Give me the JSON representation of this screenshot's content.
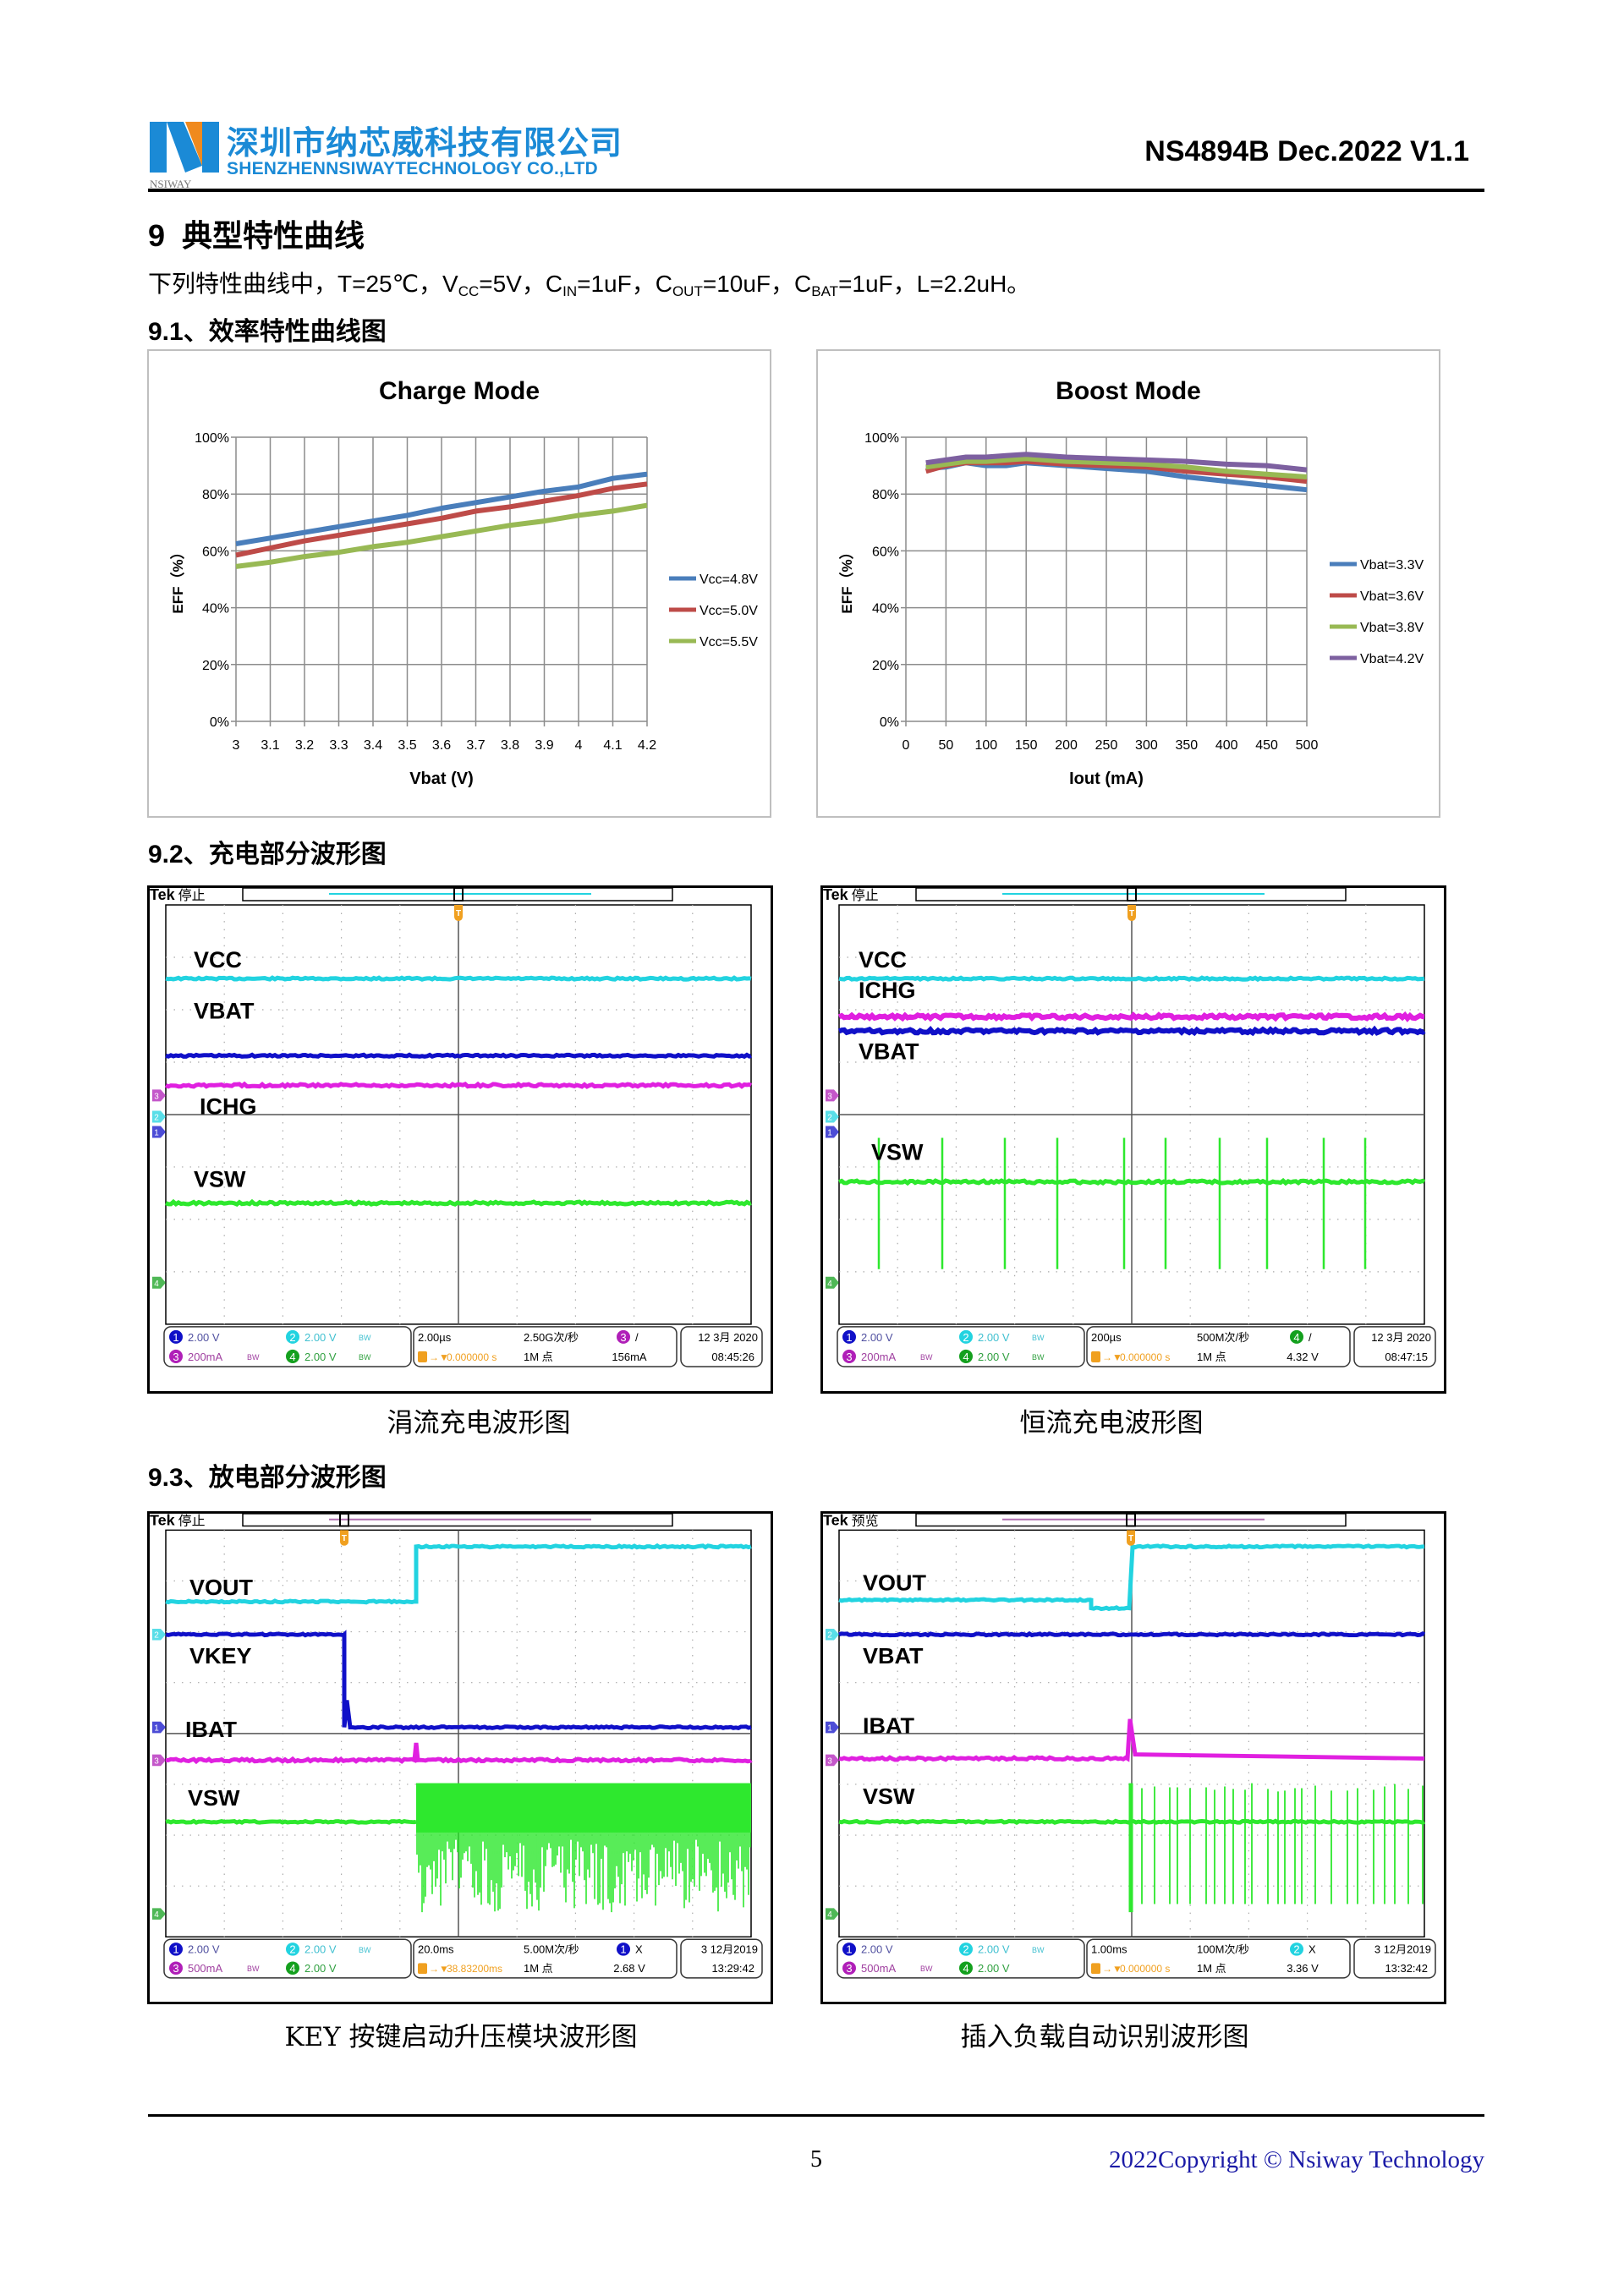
{
  "header": {
    "logo_text": "NSIWAY",
    "company_cn": "深圳市纳芯威科技有限公司",
    "company_en": "SHENZHENNSIWAYTECHNOLOGY CO.,LTD",
    "doc_id": "NS4894B Dec.2022 V1.1"
  },
  "section": {
    "title": "9  典型特性曲线",
    "conditions": [
      {
        "t": "下列特性曲线中，T=25℃，V"
      },
      {
        "t": "CC",
        "sub": true
      },
      {
        "t": "=5V，C"
      },
      {
        "t": "IN",
        "sub": true
      },
      {
        "t": "=1uF，C"
      },
      {
        "t": "OUT",
        "sub": true
      },
      {
        "t": "=10uF，C"
      },
      {
        "t": "BAT",
        "sub": true
      },
      {
        "t": "=1uF，L=2.2uH。"
      }
    ],
    "sub1": "9.1、效率特性曲线图",
    "sub2": "9.2、充电部分波形图",
    "sub3": "9.3、放电部分波形图"
  },
  "chart_data": [
    {
      "type": "line",
      "title": "Charge Mode",
      "xlabel": "Vbat (V)",
      "ylabel": "EFF（%）",
      "x": [
        3,
        3.1,
        3.2,
        3.3,
        3.4,
        3.5,
        3.6,
        3.7,
        3.8,
        3.9,
        4,
        4.1,
        4.2
      ],
      "x_tick_labels": [
        "3",
        "3.1",
        "3.2",
        "3.3",
        "3.4",
        "3.5",
        "3.6",
        "3.7",
        "3.8",
        "3.9",
        "4",
        "4.1",
        "4.2"
      ],
      "xlim": [
        3,
        4.2
      ],
      "ylim": [
        0,
        100
      ],
      "y_tick_labels": [
        "0%",
        "20%",
        "40%",
        "60%",
        "80%",
        "100%"
      ],
      "grid": true,
      "legend": "right",
      "series": [
        {
          "name": "Vcc=4.8V",
          "color": "#4a7ebb",
          "values": [
            62.5,
            64.5,
            66.5,
            68.5,
            70.5,
            72.5,
            75,
            77,
            79,
            81,
            82.5,
            85.5,
            87
          ]
        },
        {
          "name": "Vcc=5.0V",
          "color": "#be4b48",
          "values": [
            58.5,
            61,
            63.5,
            65.5,
            67.5,
            69.5,
            71.5,
            74,
            75.5,
            77.5,
            79.5,
            82,
            83.5
          ]
        },
        {
          "name": "Vcc=5.5V",
          "color": "#98b954",
          "values": [
            54.5,
            56,
            58,
            59.5,
            61.5,
            63,
            65,
            67,
            69,
            70.5,
            72.5,
            74,
            76
          ]
        }
      ]
    },
    {
      "type": "line",
      "title": "Boost Mode",
      "xlabel": "Iout (mA)",
      "ylabel": "EFF（%）",
      "x": [
        25,
        50,
        75,
        100,
        125,
        150,
        200,
        250,
        300,
        350,
        400,
        450,
        500
      ],
      "x_tick_labels": [
        "0",
        "50",
        "100",
        "150",
        "200",
        "250",
        "300",
        "350",
        "400",
        "450",
        "500"
      ],
      "xlim": [
        0,
        500
      ],
      "ylim": [
        0,
        100
      ],
      "y_tick_labels": [
        "0%",
        "20%",
        "40%",
        "60%",
        "80%",
        "100%"
      ],
      "grid": true,
      "legend": "right",
      "series": [
        {
          "name": "Vbat=3.3V",
          "color": "#4a7ebb",
          "values": [
            89,
            89.5,
            91,
            90,
            90,
            91,
            90,
            89,
            88,
            86,
            84.5,
            83,
            81.5
          ]
        },
        {
          "name": "Vbat=3.6V",
          "color": "#be4b48",
          "values": [
            88,
            90,
            91,
            91,
            91,
            91.5,
            90.5,
            90,
            89.5,
            88,
            87,
            86,
            84.5
          ]
        },
        {
          "name": "Vbat=3.8V",
          "color": "#98b954",
          "values": [
            89.5,
            90.5,
            91.5,
            91.5,
            92,
            92.5,
            91.5,
            91,
            90.5,
            89.5,
            88,
            87,
            86
          ]
        },
        {
          "name": "Vbat=4.2V",
          "color": "#7d60a0",
          "values": [
            91,
            92,
            93,
            93,
            93.5,
            94,
            93,
            92.5,
            92,
            91.5,
            90.5,
            90,
            88.5
          ]
        }
      ]
    }
  ],
  "scopes": [
    {
      "status": "停止",
      "labels": [
        "VCC",
        "VBAT",
        "ICHG",
        "VSW"
      ],
      "caption": "涓流充电波形图",
      "info": {
        "ch1": "2.00 V",
        "ch2": "2.00 V",
        "ch3": "200mA",
        "ch4": "2.00 V",
        "bw": [
          "2",
          "3",
          "4"
        ],
        "timebase": "2.00µs",
        "sample_rate": "2.50G次/秒",
        "trigger_ch": "3",
        "trigger_mode": "/",
        "trigger_delay": "0.000000 s",
        "record": "1M 点",
        "trigger_level": "156mA",
        "date": "12 3月 2020",
        "time": "08:45:26"
      }
    },
    {
      "status": "停止",
      "labels": [
        "VCC",
        "ICHG",
        "VBAT",
        "VSW"
      ],
      "caption": "恒流充电波形图",
      "info": {
        "ch1": "2.00 V",
        "ch2": "2.00 V",
        "ch3": "200mA",
        "ch4": "2.00 V",
        "bw": [
          "2",
          "3",
          "4"
        ],
        "timebase": "200µs",
        "sample_rate": "500M次/秒",
        "trigger_ch": "4",
        "trigger_mode": "/",
        "trigger_delay": "0.000000 s",
        "record": "1M 点",
        "trigger_level": "4.32 V",
        "date": "12 3月 2020",
        "time": "08:47:15"
      }
    },
    {
      "status": "停止",
      "labels": [
        "VOUT",
        "VKEY",
        "IBAT",
        "VSW"
      ],
      "caption": "KEY 按键启动升压模块波形图",
      "info": {
        "ch1": "2.00 V",
        "ch2": "2.00 V",
        "ch3": "500mA",
        "ch4": "2.00 V",
        "bw": [
          "2",
          "3"
        ],
        "timebase": "20.0ms",
        "sample_rate": "5.00M次/秒",
        "trigger_ch": "1",
        "trigger_mode": "X",
        "trigger_delay": "38.83200ms",
        "record": "1M 点",
        "trigger_level": "2.68 V",
        "date": "3 12月2019",
        "time": "13:29:42"
      }
    },
    {
      "status": "预览",
      "labels": [
        "VOUT",
        "VBAT",
        "IBAT",
        "VSW"
      ],
      "caption": "插入负载自动识别波形图",
      "info": {
        "ch1": "2.00 V",
        "ch2": "2.00 V",
        "ch3": "500mA",
        "ch4": "2.00 V",
        "bw": [
          "2",
          "3"
        ],
        "timebase": "1.00ms",
        "sample_rate": "100M次/秒",
        "trigger_ch": "2",
        "trigger_mode": "X",
        "trigger_delay": "0.000000 s",
        "record": "1M 点",
        "trigger_level": "3.36 V",
        "date": "3 12月2019",
        "time": "13:32:42"
      }
    }
  ],
  "channel_colors": {
    "1": "#1010c8",
    "2": "#22d3e0",
    "3": "#b01fb8",
    "4": "#14a01e",
    "trigger": "#f0a020"
  },
  "footer": {
    "page": "5",
    "copyright": "2022Copyright © Nsiway Technology"
  }
}
